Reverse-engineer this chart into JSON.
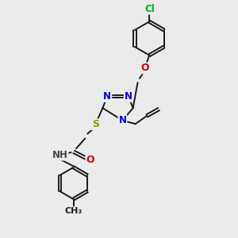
{
  "background_color": "#ebebeb",
  "bond_color": "#1a1a1a",
  "figsize": [
    3.0,
    3.0
  ],
  "dpi": 100,
  "atom_colors": {
    "N": "#0000cc",
    "O": "#cc0000",
    "S": "#999900",
    "Cl": "#00aa00",
    "C": "#1a1a1a",
    "H": "#444444"
  }
}
